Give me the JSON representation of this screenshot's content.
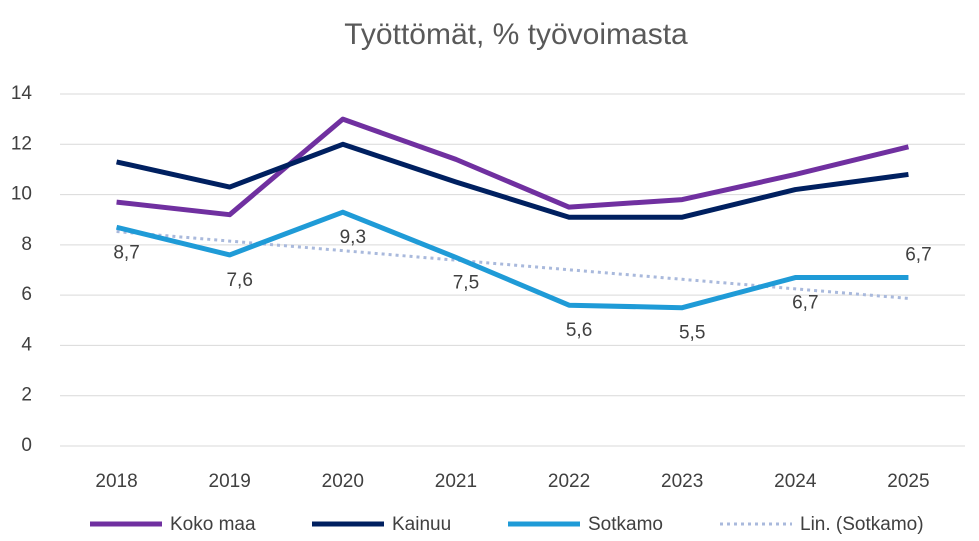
{
  "chart_data": {
    "type": "line",
    "title": "Työttömät, % työvoimasta",
    "categories": [
      "2018",
      "2019",
      "2020",
      "2021",
      "2022",
      "2023",
      "2024",
      "2025"
    ],
    "series": [
      {
        "name": "Koko maa",
        "color": "#7030a0",
        "values": [
          9.7,
          9.2,
          13.0,
          11.4,
          9.5,
          9.8,
          10.8,
          11.9
        ]
      },
      {
        "name": "Kainuu",
        "color": "#002060",
        "values": [
          11.3,
          10.3,
          12.0,
          10.5,
          9.1,
          9.1,
          10.2,
          10.8
        ]
      },
      {
        "name": "Sotkamo",
        "color": "#1f9bd7",
        "values": [
          8.7,
          7.6,
          9.3,
          7.5,
          5.6,
          5.5,
          6.7,
          6.7
        ],
        "value_labels": [
          "8,7",
          "7,6",
          "9,3",
          "7,5",
          "5,6",
          "5,5",
          "6,7",
          "6,7"
        ]
      },
      {
        "name": "Lin. (Sotkamo)",
        "color": "#a9b9dc",
        "style": "dotted",
        "values": [
          8.53,
          8.15,
          7.77,
          7.39,
          7.01,
          6.63,
          6.25,
          5.87
        ]
      }
    ],
    "ylim": [
      0,
      14
    ],
    "yticks": [
      0,
      2,
      4,
      6,
      8,
      10,
      12,
      14
    ],
    "grid": true,
    "legend": "bottom"
  }
}
